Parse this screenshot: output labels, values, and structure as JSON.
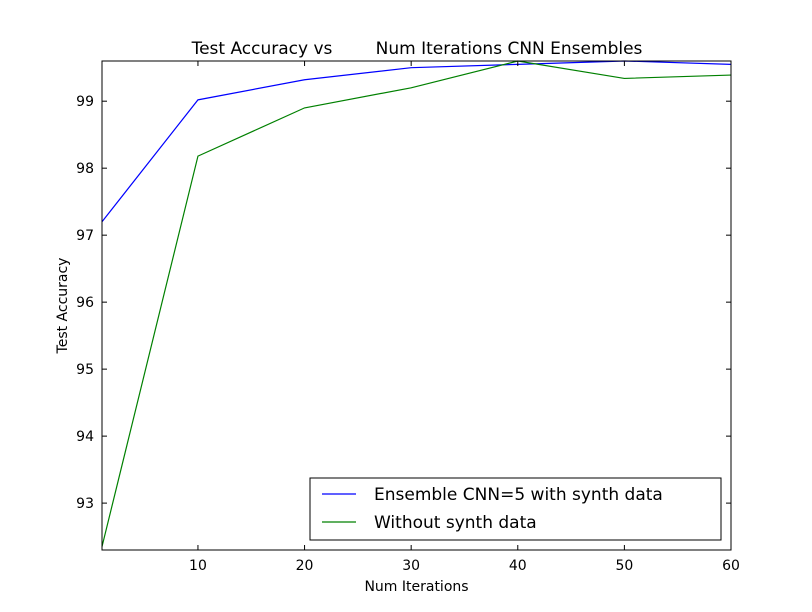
{
  "chart_data": {
    "type": "line",
    "title": "Test Accuracy vs        Num Iterations CNN Ensembles",
    "xlabel": "Num Iterations",
    "ylabel": "Test Accuracy",
    "xlim": [
      1,
      60
    ],
    "ylim": [
      92.3,
      99.6
    ],
    "xticks": [
      10,
      20,
      30,
      40,
      50,
      60
    ],
    "yticks": [
      93,
      94,
      95,
      96,
      97,
      98,
      99
    ],
    "grid": false,
    "legend_position": "bottom-right",
    "series": [
      {
        "name": "Ensemble CNN=5 with synth data",
        "color": "#0000ff",
        "x": [
          1,
          10,
          20,
          30,
          40,
          50,
          60
        ],
        "y": [
          97.2,
          99.02,
          99.32,
          99.5,
          99.55,
          99.6,
          99.55
        ]
      },
      {
        "name": "Without synth data",
        "color": "#008000",
        "x": [
          1,
          10,
          20,
          30,
          40,
          50,
          60
        ],
        "y": [
          92.35,
          98.18,
          98.9,
          99.2,
          99.6,
          99.34,
          99.39
        ]
      }
    ]
  }
}
